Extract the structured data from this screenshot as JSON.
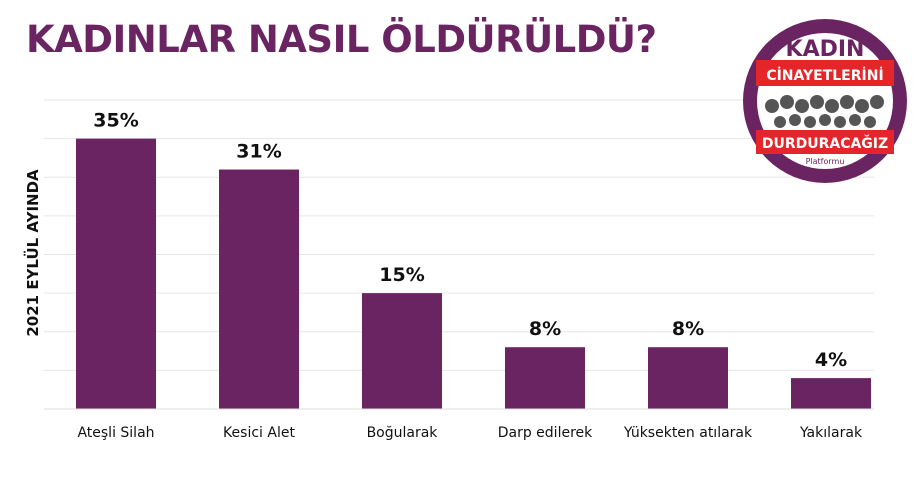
{
  "title": "KADINLAR NASIL ÖLDÜRÜLDÜ?",
  "logo": {
    "line1": "KADIN",
    "line2": "CİNAYETLERİNİ",
    "line3": "DURDURACAĞIZ",
    "line4": "Platformu"
  },
  "colors": {
    "bar": "#6b2462",
    "title": "#6b2462",
    "logo_ring": "#6b2462",
    "logo_band": "#e4262a"
  },
  "chart_data": {
    "type": "bar",
    "title": "KADINLAR NASIL ÖLDÜRÜLDÜ?",
    "ylabel": "2021 EYLÜL AYINDA",
    "xlabel": "",
    "categories": [
      "Ateşli Silah",
      "Kesici Alet",
      "Boğularak",
      "Darp edilerek",
      "Yüksekten atılarak",
      "Yakılarak"
    ],
    "values": [
      35,
      31,
      15,
      8,
      8,
      4
    ],
    "value_labels": [
      "35%",
      "31%",
      "15%",
      "8%",
      "8%",
      "4%"
    ],
    "ylim": [
      0,
      40
    ],
    "grid": true,
    "legend": "none"
  }
}
